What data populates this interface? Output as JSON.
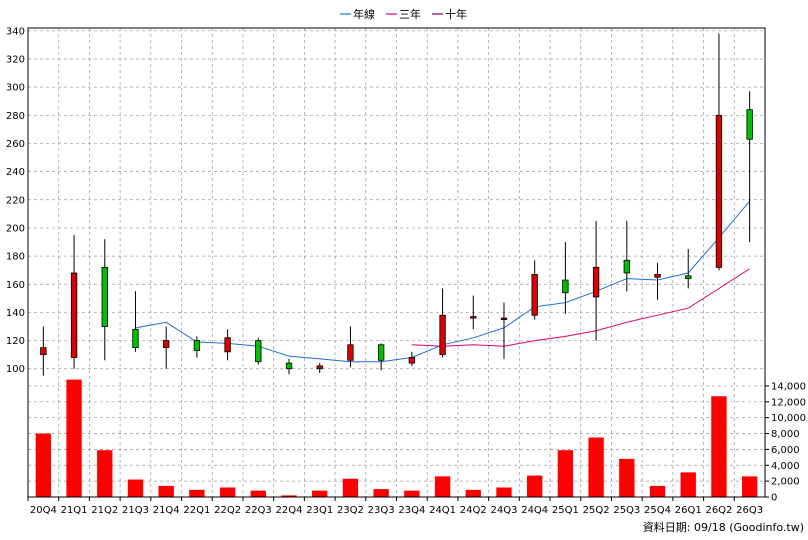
{
  "legend": [
    {
      "label": "年線",
      "color": "#1f6fd6"
    },
    {
      "label": "三年",
      "color": "#e0006b"
    },
    {
      "label": "十年",
      "color": "#8b0060"
    }
  ],
  "footer_text": "資料日期: 09/18  (Goodinfo.tw)",
  "colors": {
    "up": "#dc0000",
    "down": "#00c000",
    "volume": "#ff0000",
    "grid": "#999999"
  },
  "chart_data": [
    {
      "type": "candlestick",
      "title": "",
      "categories": [
        "20Q4",
        "21Q1",
        "21Q2",
        "21Q3",
        "21Q4",
        "22Q1",
        "22Q2",
        "22Q3",
        "22Q4",
        "23Q1",
        "23Q2",
        "23Q3",
        "23Q4",
        "24Q1",
        "24Q2",
        "24Q3",
        "24Q4",
        "25Q1",
        "25Q2",
        "25Q3",
        "25Q4",
        "26Q1",
        "26Q2",
        "26Q3"
      ],
      "ylim": [
        92,
        342
      ],
      "yticks": [
        100,
        120,
        140,
        160,
        180,
        200,
        220,
        240,
        260,
        280,
        300,
        320,
        340
      ],
      "ohlc": [
        {
          "open": 110,
          "high": 130,
          "low": 95,
          "close": 115
        },
        {
          "open": 108,
          "high": 195,
          "low": 100,
          "close": 168
        },
        {
          "open": 172,
          "high": 192,
          "low": 106,
          "close": 130
        },
        {
          "open": 128,
          "high": 155,
          "low": 112,
          "close": 115
        },
        {
          "open": 115,
          "high": 130,
          "low": 100,
          "close": 120
        },
        {
          "open": 120,
          "high": 123,
          "low": 108,
          "close": 113
        },
        {
          "open": 112,
          "high": 128,
          "low": 106,
          "close": 122
        },
        {
          "open": 120,
          "high": 122,
          "low": 103,
          "close": 105
        },
        {
          "open": 104,
          "high": 107,
          "low": 96,
          "close": 100
        },
        {
          "open": 100,
          "high": 104,
          "low": 97,
          "close": 102
        },
        {
          "open": 106,
          "high": 130,
          "low": 101,
          "close": 117
        },
        {
          "open": 117,
          "high": 118,
          "low": 99,
          "close": 106
        },
        {
          "open": 104,
          "high": 112,
          "low": 102,
          "close": 108
        },
        {
          "open": 110,
          "high": 157,
          "low": 108,
          "close": 138
        },
        {
          "open": 136,
          "high": 152,
          "low": 128,
          "close": 137
        },
        {
          "open": 136,
          "high": 147,
          "low": 107,
          "close": 136
        },
        {
          "open": 138,
          "high": 177,
          "low": 135,
          "close": 167
        },
        {
          "open": 163,
          "high": 190,
          "low": 139,
          "close": 154
        },
        {
          "open": 151,
          "high": 205,
          "low": 120,
          "close": 172
        },
        {
          "open": 177,
          "high": 205,
          "low": 155,
          "close": 168
        },
        {
          "open": 165,
          "high": 175,
          "low": 149,
          "close": 167
        },
        {
          "open": 166,
          "high": 185,
          "low": 157,
          "close": 164
        },
        {
          "open": 172,
          "high": 338,
          "low": 170,
          "close": 280
        },
        {
          "open": 284,
          "high": 297,
          "low": 190,
          "close": 263
        }
      ],
      "series": [
        {
          "name": "年線",
          "values": [
            null,
            null,
            null,
            129,
            133,
            119,
            118,
            116,
            109,
            107,
            105,
            105,
            108,
            117,
            122,
            129,
            144,
            147,
            155,
            164,
            163,
            168,
            193,
            219
          ]
        },
        {
          "name": "三年",
          "values": [
            null,
            null,
            null,
            null,
            null,
            null,
            null,
            null,
            null,
            null,
            null,
            null,
            117,
            116,
            117,
            116,
            120,
            123,
            127,
            133,
            138,
            143,
            157,
            171
          ]
        },
        {
          "name": "十年",
          "values": [
            null,
            null,
            null,
            null,
            null,
            null,
            null,
            null,
            null,
            null,
            null,
            null,
            null,
            null,
            null,
            null,
            null,
            null,
            null,
            null,
            null,
            null,
            null,
            null
          ]
        }
      ]
    },
    {
      "type": "bar",
      "title": "",
      "categories": [
        "20Q4",
        "21Q1",
        "21Q2",
        "21Q3",
        "21Q4",
        "22Q1",
        "22Q2",
        "22Q3",
        "22Q4",
        "23Q1",
        "23Q2",
        "23Q3",
        "23Q4",
        "24Q1",
        "24Q2",
        "24Q3",
        "24Q4",
        "25Q1",
        "25Q2",
        "25Q3",
        "25Q4",
        "26Q1",
        "26Q2",
        "26Q3"
      ],
      "values": [
        8000,
        14800,
        5900,
        2200,
        1400,
        900,
        1200,
        800,
        200,
        800,
        2300,
        1000,
        800,
        2600,
        900,
        1200,
        2700,
        5900,
        7500,
        4800,
        1400,
        3100,
        12700,
        2600
      ],
      "ylim": [
        0,
        15000
      ],
      "yticks": [
        0,
        2000,
        4000,
        6000,
        8000,
        10000,
        12000,
        14000
      ],
      "ytick_labels": [
        "0",
        "2,000",
        "4,000",
        "6,000",
        "8,000",
        "10,000",
        "12,000",
        "14,000"
      ]
    }
  ]
}
